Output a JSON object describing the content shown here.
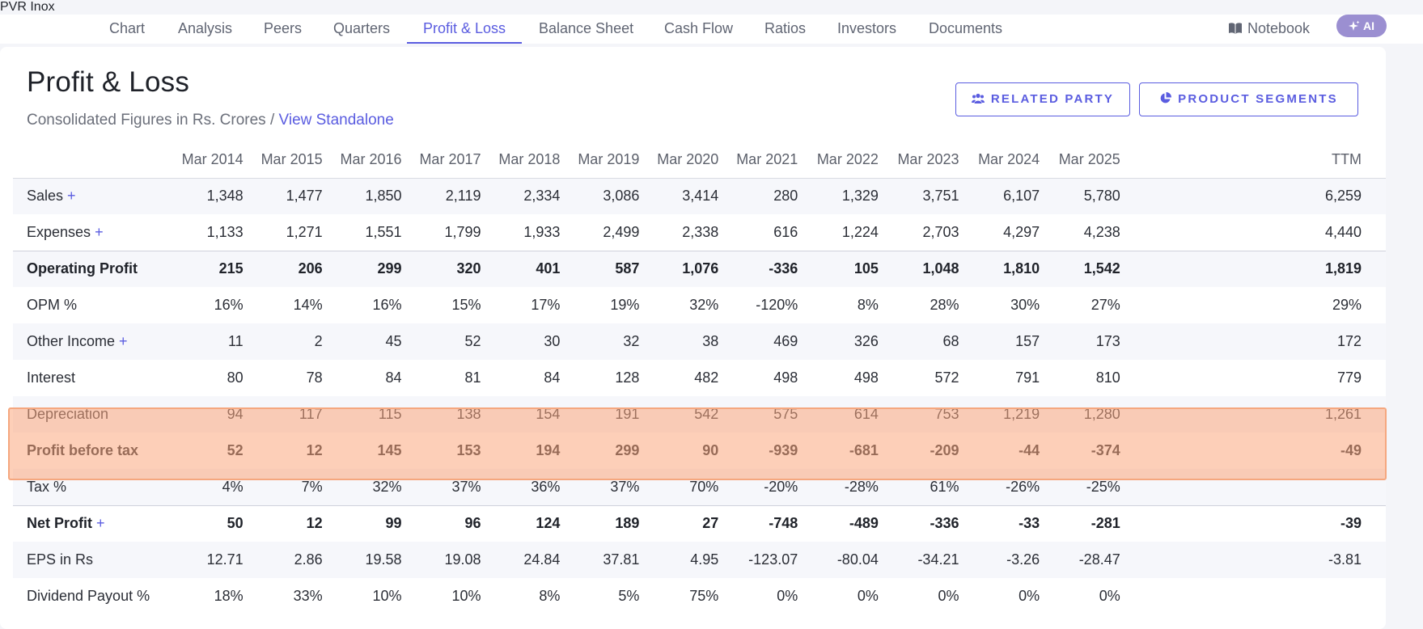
{
  "nav": {
    "company": "PVR Inox",
    "tabs": [
      {
        "label": "Chart"
      },
      {
        "label": "Analysis"
      },
      {
        "label": "Peers"
      },
      {
        "label": "Quarters"
      },
      {
        "label": "Profit & Loss"
      },
      {
        "label": "Balance Sheet"
      },
      {
        "label": "Cash Flow"
      },
      {
        "label": "Ratios"
      },
      {
        "label": "Investors"
      },
      {
        "label": "Documents"
      }
    ],
    "active_tab": "Profit & Loss",
    "notebook_label": "Notebook",
    "ai_label": "AI"
  },
  "header": {
    "title": "Profit & Loss",
    "subtitle": "Consolidated Figures in Rs. Crores / ",
    "standalone_link": "View Standalone",
    "related_party_label": "RELATED PARTY",
    "product_segments_label": "PRODUCT SEGMENTS"
  },
  "table": {
    "columns": [
      "Mar 2014",
      "Mar 2015",
      "Mar 2016",
      "Mar 2017",
      "Mar 2018",
      "Mar 2019",
      "Mar 2020",
      "Mar 2021",
      "Mar 2022",
      "Mar 2023",
      "Mar 2024",
      "Mar 2025",
      "TTM"
    ],
    "rows": [
      {
        "label": "Sales",
        "values": [
          "1,348",
          "1,477",
          "1,850",
          "2,119",
          "2,334",
          "3,086",
          "3,414",
          "280",
          "1,329",
          "3,751",
          "6,107",
          "5,780",
          "6,259"
        ]
      },
      {
        "label": "Expenses",
        "values": [
          "1,133",
          "1,271",
          "1,551",
          "1,799",
          "1,933",
          "2,499",
          "2,338",
          "616",
          "1,224",
          "2,703",
          "4,297",
          "4,238",
          "4,440"
        ]
      },
      {
        "label": "Operating Profit",
        "values": [
          "215",
          "206",
          "299",
          "320",
          "401",
          "587",
          "1,076",
          "-336",
          "105",
          "1,048",
          "1,810",
          "1,542",
          "1,819"
        ]
      },
      {
        "label": "OPM %",
        "values": [
          "16%",
          "14%",
          "16%",
          "15%",
          "17%",
          "19%",
          "32%",
          "-120%",
          "8%",
          "28%",
          "30%",
          "27%",
          "29%"
        ]
      },
      {
        "label": "Other Income",
        "values": [
          "11",
          "2",
          "45",
          "52",
          "30",
          "32",
          "38",
          "469",
          "326",
          "68",
          "157",
          "173",
          "172"
        ]
      },
      {
        "label": "Interest",
        "values": [
          "80",
          "78",
          "84",
          "81",
          "84",
          "128",
          "482",
          "498",
          "498",
          "572",
          "791",
          "810",
          "779"
        ]
      },
      {
        "label": "Depreciation",
        "values": [
          "94",
          "117",
          "115",
          "138",
          "154",
          "191",
          "542",
          "575",
          "614",
          "753",
          "1,219",
          "1,280",
          "1,261"
        ]
      },
      {
        "label": "Profit before tax",
        "values": [
          "52",
          "12",
          "145",
          "153",
          "194",
          "299",
          "90",
          "-939",
          "-681",
          "-209",
          "-44",
          "-374",
          "-49"
        ]
      },
      {
        "label": "Tax %",
        "values": [
          "4%",
          "7%",
          "32%",
          "37%",
          "36%",
          "37%",
          "70%",
          "-20%",
          "-28%",
          "61%",
          "-26%",
          "-25%",
          ""
        ]
      },
      {
        "label": "Net Profit",
        "values": [
          "50",
          "12",
          "99",
          "96",
          "124",
          "189",
          "27",
          "-748",
          "-489",
          "-336",
          "-33",
          "-281",
          "-39"
        ]
      },
      {
        "label": "EPS in Rs",
        "values": [
          "12.71",
          "2.86",
          "19.58",
          "19.08",
          "24.84",
          "37.81",
          "4.95",
          "-123.07",
          "-80.04",
          "-34.21",
          "-3.26",
          "-28.47",
          "-3.81"
        ]
      },
      {
        "label": "Dividend Payout %",
        "values": [
          "18%",
          "33%",
          "10%",
          "10%",
          "8%",
          "5%",
          "75%",
          "0%",
          "0%",
          "0%",
          "0%",
          "0%",
          ""
        ]
      }
    ],
    "expandable_symbol": "+"
  },
  "colors": {
    "accent": "#5a5ce0",
    "highlight": "#fccbb2",
    "ai_badge": "#9b8fd1"
  }
}
